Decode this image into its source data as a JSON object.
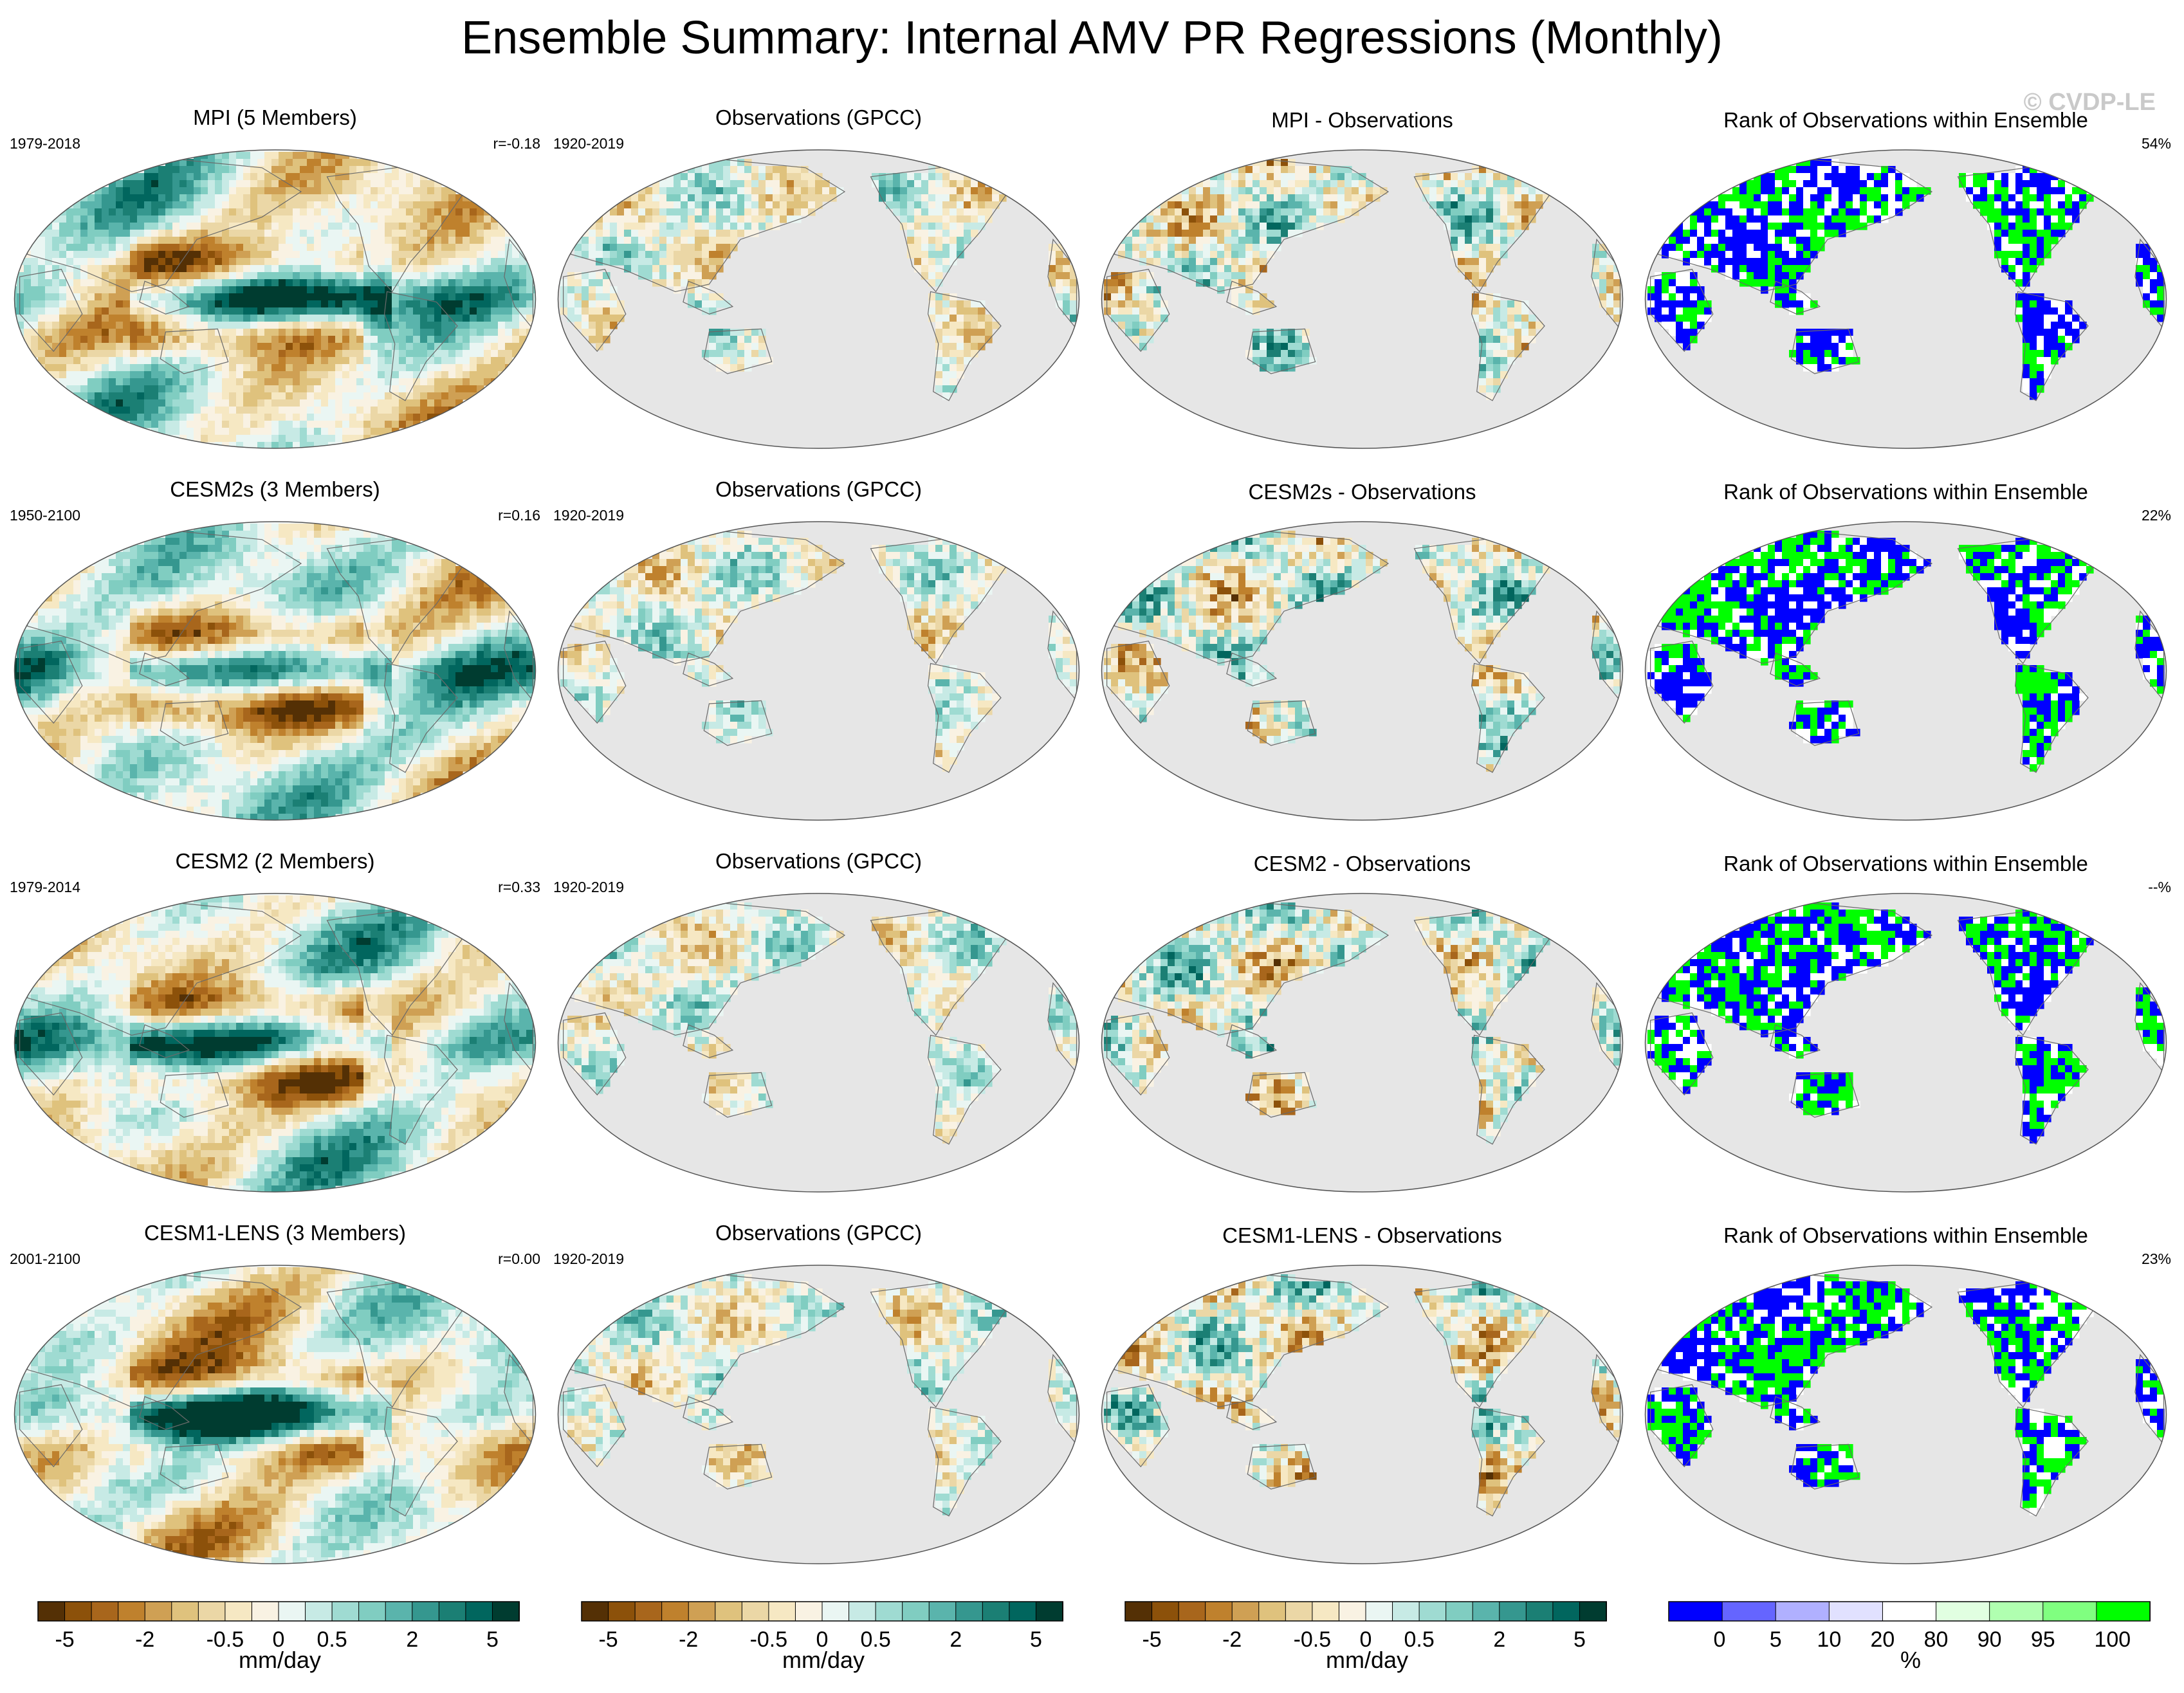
{
  "main_title": "Ensemble Summary: Internal AMV PR Regressions (Monthly)",
  "watermark": "© CVDP-LE",
  "colors": {
    "ocean_grey": "#e6e6e6",
    "brown_ramp": [
      "#543005",
      "#8c510a",
      "#a8661c",
      "#bf812d",
      "#cfa054",
      "#dfc27d",
      "#ebd7a6",
      "#f6e8c3",
      "#f9f2e3"
    ],
    "teal_ramp": [
      "#eaf6f3",
      "#c7eae5",
      "#9fdbd2",
      "#80cdc1",
      "#5ab4ac",
      "#35978f",
      "#1b7f74",
      "#01665e",
      "#003c30"
    ],
    "rank_colors": [
      "#0000ff",
      "#6565ff",
      "#b0b0ff",
      "#e1e1ff",
      "#ffffff",
      "#e1ffe1",
      "#b0ffb0",
      "#80ff80",
      "#00ff00"
    ]
  },
  "rows": [
    {
      "model": {
        "title": "MPI (5 Members)",
        "period": "1979-2018",
        "stat": "r=-0.18"
      },
      "obs": {
        "title": "Observations (GPCC)",
        "period": "1920-2019"
      },
      "diff": {
        "title": "MPI - Observations"
      },
      "rank": {
        "title": "Rank of Observations within Ensemble",
        "stat": "54%"
      }
    },
    {
      "model": {
        "title": "CESM2s (3 Members)",
        "period": "1950-2100",
        "stat": "r=0.16"
      },
      "obs": {
        "title": "Observations (GPCC)",
        "period": "1920-2019"
      },
      "diff": {
        "title": "CESM2s - Observations"
      },
      "rank": {
        "title": "Rank of Observations within Ensemble",
        "stat": "22%"
      }
    },
    {
      "model": {
        "title": "CESM2 (2 Members)",
        "period": "1979-2014",
        "stat": "r=0.33"
      },
      "obs": {
        "title": "Observations (GPCC)",
        "period": "1920-2019"
      },
      "diff": {
        "title": "CESM2 - Observations"
      },
      "rank": {
        "title": "Rank of Observations within Ensemble",
        "stat": "--%"
      }
    },
    {
      "model": {
        "title": "CESM1-LENS (3 Members)",
        "period": "2001-2100",
        "stat": "r=0.00"
      },
      "obs": {
        "title": "Observations (GPCC)",
        "period": "1920-2019"
      },
      "diff": {
        "title": "CESM1-LENS - Observations"
      },
      "rank": {
        "title": "Rank of Observations within Ensemble",
        "stat": "23%"
      }
    }
  ],
  "colorbars": [
    {
      "ticks": [
        "-5",
        "-2",
        "-0.5",
        "0",
        "0.5",
        "2",
        "5"
      ],
      "label": "mm/day"
    },
    {
      "ticks": [
        "-5",
        "-2",
        "-0.5",
        "0",
        "0.5",
        "2",
        "5"
      ],
      "label": "mm/day"
    },
    {
      "ticks": [
        "-5",
        "-2",
        "-0.5",
        "0",
        "0.5",
        "2",
        "5"
      ],
      "label": "mm/day"
    },
    {
      "ticks": [
        "0",
        "5",
        "10",
        "20",
        "80",
        "90",
        "95",
        "100"
      ],
      "label": "%"
    }
  ]
}
